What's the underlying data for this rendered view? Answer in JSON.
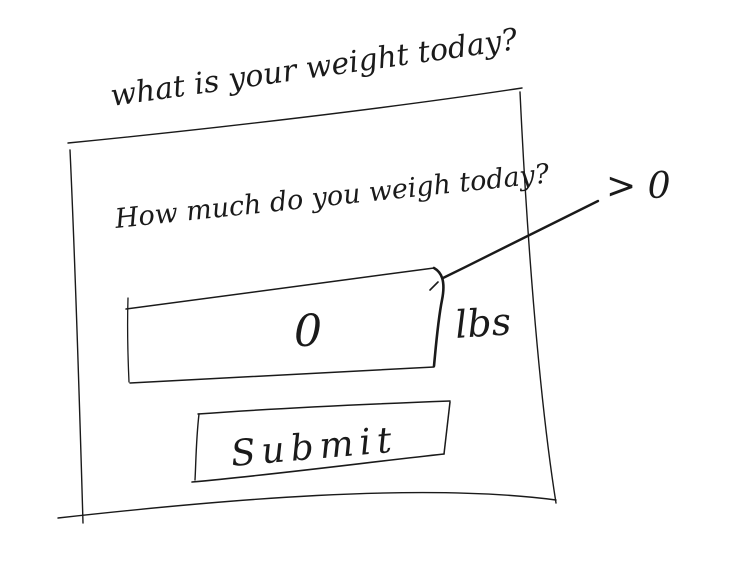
{
  "title": "what is your weight today?",
  "form": {
    "question": "How much do you weigh today?",
    "weight_input": {
      "value": "0",
      "unit": "lbs"
    },
    "submit_label": "Submit"
  },
  "annotation": {
    "note": "> 0"
  },
  "colors": {
    "ink": "#1a1a1a",
    "paper": "#ffffff"
  }
}
